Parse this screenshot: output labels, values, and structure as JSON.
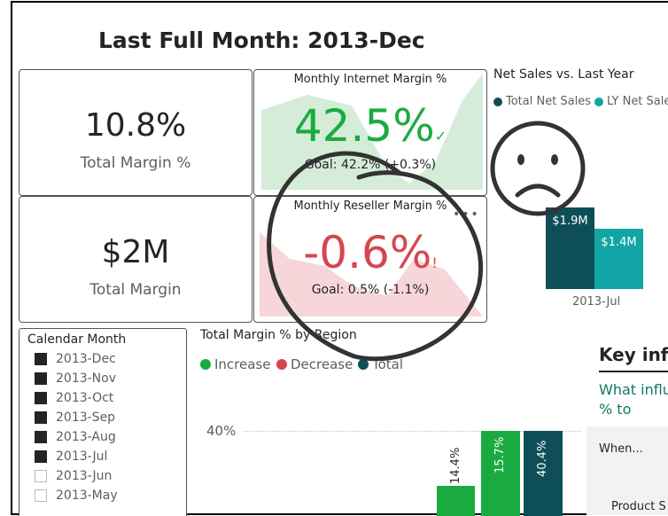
{
  "page": {
    "title": "Last Full Month: 2013-Dec"
  },
  "cards": {
    "total_margin_pct": {
      "value": "10.8%",
      "label": "Total Margin %"
    },
    "total_margin": {
      "value": "$2M",
      "label": "Total Margin"
    }
  },
  "kpis": {
    "internet": {
      "title": "Monthly Internet Margin %",
      "value": "42.5%",
      "status": "✓",
      "goal": "Goal: 42.2% (+0.3%)",
      "color": "#1aab40",
      "bg": "#d5ecd9"
    },
    "reseller": {
      "title": "Monthly Reseller Margin %",
      "value": "-0.6%",
      "status": "!",
      "goal": "Goal: 0.5% (-1.1%)",
      "color": "#d64550",
      "bg": "#f6d6d9"
    }
  },
  "net_sales": {
    "title": "Net Sales vs. Last Year",
    "legend": [
      {
        "name": "Total Net Sales",
        "color": "#0e4e58"
      },
      {
        "name": "LY Net Sales",
        "color": "#12a5a5"
      }
    ]
  },
  "chart_data": [
    {
      "type": "bar",
      "title": "Net Sales vs. Last Year",
      "categories": [
        "2013-Jul"
      ],
      "series": [
        {
          "name": "Total Net Sales",
          "values": [
            1.9
          ],
          "labels": [
            "$1.9M"
          ],
          "color": "#0e4e58"
        },
        {
          "name": "LY Net Sales",
          "values": [
            1.4
          ],
          "labels": [
            "$1.4M"
          ],
          "color": "#12a5a5"
        }
      ]
    },
    {
      "type": "bar",
      "title": "Total Margin % by Region",
      "yticks": [
        "40%"
      ],
      "legend": [
        {
          "name": "Increase",
          "color": "#1aab40"
        },
        {
          "name": "Decrease",
          "color": "#d64550"
        },
        {
          "name": "Total",
          "color": "#0e4e58"
        }
      ],
      "bars": [
        {
          "label": "14.4%",
          "value": 14.4,
          "kind": "Increase"
        },
        {
          "label": "15.7%",
          "value": 15.7,
          "kind": "Increase"
        },
        {
          "label": "40.4%",
          "value": 40.4,
          "kind": "Total"
        }
      ]
    }
  ],
  "slicer": {
    "title": "Calendar Month",
    "items": [
      {
        "label": "2013-Dec",
        "checked": true
      },
      {
        "label": "2013-Nov",
        "checked": true
      },
      {
        "label": "2013-Oct",
        "checked": true
      },
      {
        "label": "2013-Sep",
        "checked": true
      },
      {
        "label": "2013-Aug",
        "checked": true
      },
      {
        "label": "2013-Jul",
        "checked": true
      },
      {
        "label": "2013-Jun",
        "checked": false
      },
      {
        "label": "2013-May",
        "checked": false
      }
    ]
  },
  "key_influencers": {
    "title": "Key influ",
    "question_line1": "What influ",
    "question_line2": "% to",
    "when": "When...",
    "category": "Product S"
  },
  "annotations": {
    "face": "sad-face",
    "ink_color": "#333333"
  }
}
